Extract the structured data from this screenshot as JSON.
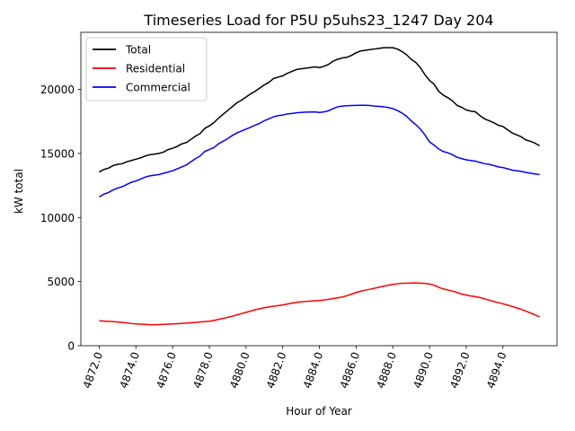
{
  "chart_data": {
    "type": "line",
    "title": "Timeseries Load for P5U p5uhs23_1247  Day 204",
    "xlabel": "Hour of Year",
    "ylabel": "kW total",
    "xlim": [
      4871.0,
      4896.95
    ],
    "ylim": [
      0,
      24450
    ],
    "xticks": [
      4872,
      4874,
      4876,
      4878,
      4880,
      4882,
      4884,
      4886,
      4888,
      4890,
      4892,
      4894
    ],
    "xtick_labels": [
      "4872.0",
      "4874.0",
      "4876.0",
      "4878.0",
      "4880.0",
      "4882.0",
      "4884.0",
      "4886.0",
      "4888.0",
      "4890.0",
      "4892.0",
      "4894.0"
    ],
    "yticks": [
      0,
      5000,
      10000,
      15000,
      20000
    ],
    "ytick_labels": [
      "0",
      "5000",
      "10000",
      "15000",
      "20000"
    ],
    "legend_position": "top-left",
    "x_start": 4872.0,
    "x_step": 0.25,
    "series": [
      {
        "name": "Total",
        "color": "#000000",
        "values": [
          13550,
          13750,
          13850,
          14050,
          14150,
          14200,
          14350,
          14450,
          14550,
          14650,
          14800,
          14900,
          14950,
          15000,
          15100,
          15300,
          15400,
          15550,
          15750,
          15850,
          16100,
          16350,
          16550,
          16950,
          17150,
          17400,
          17750,
          18050,
          18350,
          18650,
          18950,
          19150,
          19400,
          19650,
          19850,
          20100,
          20350,
          20550,
          20850,
          20950,
          21050,
          21250,
          21400,
          21550,
          21600,
          21650,
          21700,
          21750,
          21700,
          21800,
          21950,
          22200,
          22350,
          22450,
          22500,
          22650,
          22850,
          23000,
          23050,
          23100,
          23150,
          23200,
          23250,
          23250,
          23250,
          23150,
          22950,
          22700,
          22350,
          22100,
          21700,
          21150,
          20700,
          20400,
          19850,
          19550,
          19350,
          19100,
          18750,
          18600,
          18400,
          18300,
          18250,
          17950,
          17700,
          17550,
          17400,
          17200,
          17100,
          16850,
          16600,
          16450,
          16300,
          16050,
          15950,
          15800,
          15600
        ]
      },
      {
        "name": "Residential",
        "color": "#ff0000",
        "values": [
          1950,
          1920,
          1900,
          1880,
          1850,
          1820,
          1780,
          1730,
          1700,
          1680,
          1660,
          1640,
          1640,
          1650,
          1660,
          1680,
          1700,
          1720,
          1740,
          1760,
          1790,
          1820,
          1850,
          1880,
          1910,
          1970,
          2050,
          2130,
          2210,
          2300,
          2400,
          2500,
          2600,
          2700,
          2800,
          2880,
          2960,
          3020,
          3080,
          3130,
          3180,
          3250,
          3320,
          3380,
          3420,
          3460,
          3480,
          3500,
          3520,
          3560,
          3620,
          3680,
          3740,
          3800,
          3900,
          4020,
          4150,
          4250,
          4330,
          4400,
          4480,
          4560,
          4640,
          4720,
          4780,
          4830,
          4870,
          4880,
          4890,
          4900,
          4880,
          4860,
          4820,
          4720,
          4560,
          4430,
          4340,
          4260,
          4150,
          4030,
          3950,
          3880,
          3830,
          3760,
          3650,
          3550,
          3450,
          3360,
          3270,
          3170,
          3060,
          2950,
          2830,
          2700,
          2550,
          2400,
          2250
        ]
      },
      {
        "name": "Commercial",
        "color": "#0000ff",
        "values": [
          11600,
          11820,
          11950,
          12150,
          12300,
          12400,
          12580,
          12750,
          12850,
          13000,
          13150,
          13250,
          13300,
          13350,
          13450,
          13550,
          13650,
          13800,
          13950,
          14100,
          14350,
          14600,
          14800,
          15150,
          15300,
          15450,
          15750,
          15950,
          16150,
          16400,
          16600,
          16750,
          16900,
          17050,
          17200,
          17350,
          17550,
          17700,
          17850,
          17950,
          18000,
          18080,
          18120,
          18170,
          18200,
          18220,
          18230,
          18240,
          18200,
          18240,
          18330,
          18500,
          18640,
          18700,
          18720,
          18740,
          18750,
          18760,
          18760,
          18740,
          18700,
          18670,
          18640,
          18580,
          18500,
          18350,
          18150,
          17900,
          17550,
          17250,
          16900,
          16450,
          15900,
          15650,
          15350,
          15150,
          15050,
          14900,
          14700,
          14600,
          14500,
          14450,
          14400,
          14300,
          14200,
          14150,
          14050,
          13950,
          13900,
          13800,
          13700,
          13650,
          13600,
          13520,
          13460,
          13400,
          13350
        ]
      }
    ]
  }
}
